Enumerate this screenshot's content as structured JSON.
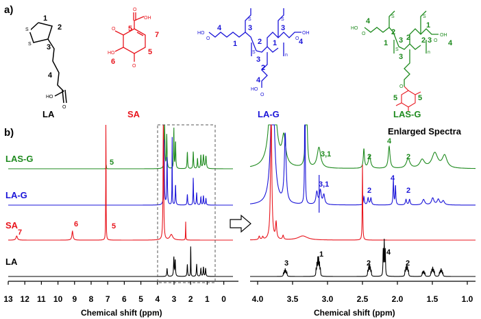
{
  "panel_a": {
    "label": "a)",
    "compounds": [
      {
        "name": "LA",
        "color": "#000000"
      },
      {
        "name": "SA",
        "color": "#e8141c"
      },
      {
        "name": "LA-G",
        "color": "#1a14d8"
      },
      {
        "name": "LAS-G",
        "color": "#1e8a1e"
      }
    ],
    "atoms": {
      "S": "S",
      "OH": "OH",
      "O": "O",
      "HO": "HO",
      "HO_sa": "HO",
      "n": "n"
    },
    "la_numbers": [
      "1",
      "2",
      "3",
      "4"
    ],
    "sa_numbers": [
      "5",
      "7",
      "6",
      "5"
    ],
    "lag_numbers": [
      "4",
      "1",
      "3",
      "2",
      "3",
      "2",
      "1",
      "3",
      "4",
      "4"
    ],
    "lasg_numbers": [
      "4",
      "2",
      "1",
      "3",
      "2",
      "1",
      "3",
      "2",
      "4",
      "3",
      "5",
      "5"
    ]
  },
  "panel_b": {
    "label": "b)",
    "enlarged_title": "Enlarged Spectra",
    "trace_labels": [
      "LAS-G",
      "LA-G",
      "SA",
      "LA"
    ],
    "sa_peak_labels": [
      "7",
      "6",
      "5"
    ],
    "lasg_peak_label": "5",
    "right_labels": {
      "lasg": [
        "3,1",
        "2",
        "4",
        "2"
      ],
      "lag": [
        "3,1",
        "2",
        "4",
        "2"
      ],
      "la": [
        "3",
        "1",
        "2",
        "4",
        "2"
      ]
    },
    "left_axis": {
      "ticks": [
        "13",
        "12",
        "11",
        "10",
        "9",
        "8",
        "7",
        "6",
        "5",
        "4",
        "3",
        "2",
        "1",
        "0"
      ],
      "xlabel": "Chemical shift (ppm)"
    },
    "right_axis": {
      "ticks": [
        "4.0",
        "3.5",
        "3.0",
        "2.5",
        "2.0",
        "1.5",
        "1.0"
      ],
      "xlabel": "Chemical shift (ppm)"
    }
  },
  "colors": {
    "LAS-G": "#1e8a1e",
    "LA-G": "#1a14d8",
    "SA": "#e8141c",
    "LA": "#000000"
  }
}
